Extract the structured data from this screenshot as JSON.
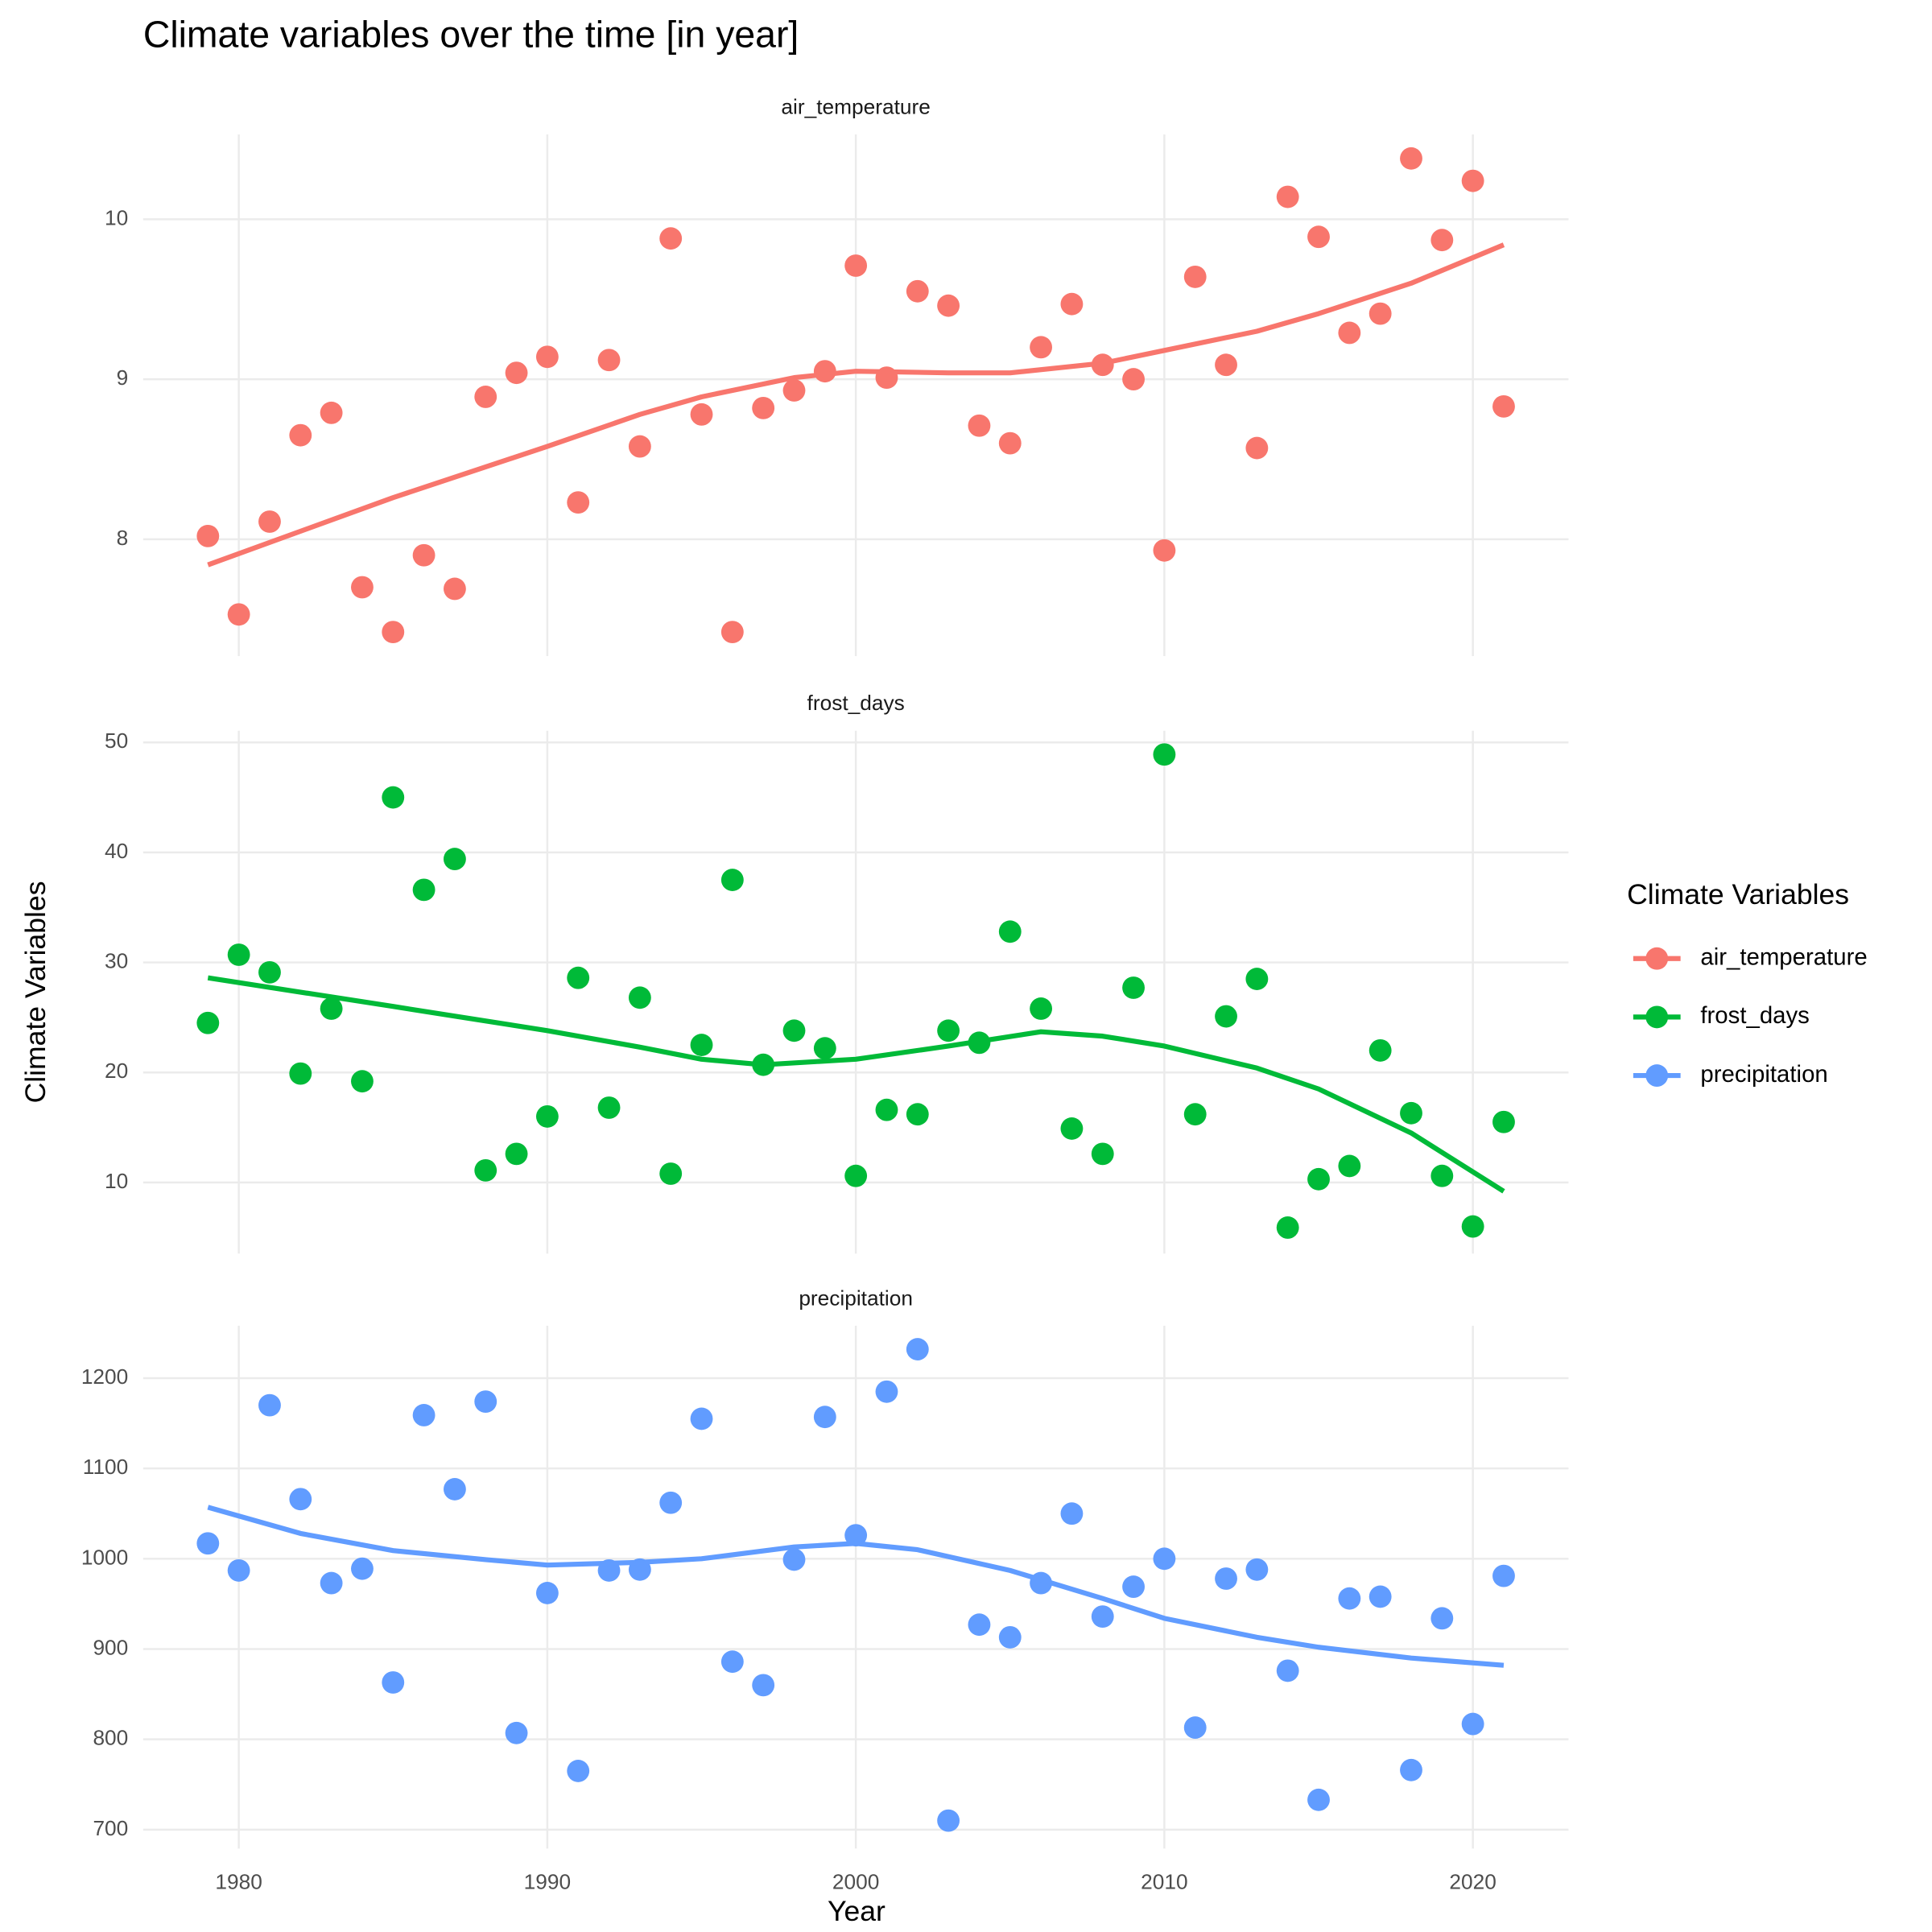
{
  "chart_data": {
    "type": "scatter",
    "title": "Climate variables over the time [in year]",
    "x_label": "Year",
    "y_label": "Climate Variables",
    "legend_title": "Climate Variables",
    "legend_position": "right",
    "grid": true,
    "x": [
      1979,
      1980,
      1981,
      1982,
      1983,
      1984,
      1985,
      1986,
      1987,
      1988,
      1989,
      1990,
      1991,
      1992,
      1993,
      1994,
      1995,
      1996,
      1997,
      1998,
      1999,
      2000,
      2001,
      2002,
      2003,
      2004,
      2005,
      2006,
      2007,
      2008,
      2009,
      2010,
      2011,
      2012,
      2013,
      2014,
      2015,
      2016,
      2017,
      2018,
      2019,
      2020,
      2021
    ],
    "xlim": [
      1976.9,
      2023.1
    ],
    "xticks": [
      1980,
      1990,
      2000,
      2010,
      2020
    ],
    "facets": [
      {
        "name": "air_temperature",
        "color": "#F8766D",
        "values": [
          8.02,
          7.53,
          8.11,
          8.65,
          8.79,
          7.7,
          7.42,
          7.9,
          7.69,
          8.89,
          9.04,
          9.14,
          8.23,
          9.12,
          8.58,
          9.88,
          8.78,
          7.42,
          8.82,
          8.93,
          9.05,
          9.71,
          9.01,
          9.55,
          9.46,
          8.71,
          8.6,
          9.2,
          9.47,
          9.09,
          9.0,
          7.93,
          9.64,
          9.09,
          8.57,
          10.14,
          9.89,
          9.29,
          9.41,
          10.38,
          9.87,
          10.24,
          8.83
        ],
        "ylim": [
          7.27,
          10.53
        ],
        "yticks": [
          8,
          9,
          10
        ],
        "smooth": {
          "x": [
            1979,
            1985,
            1990,
            1993,
            1995,
            1998,
            2000,
            2003,
            2005,
            2008,
            2010,
            2013,
            2015,
            2018,
            2021
          ],
          "values": [
            7.84,
            8.26,
            8.58,
            8.78,
            8.89,
            9.01,
            9.05,
            9.04,
            9.04,
            9.1,
            9.18,
            9.3,
            9.41,
            9.6,
            9.84
          ]
        }
      },
      {
        "name": "frost_days",
        "color": "#00BA38",
        "values": [
          24.5,
          30.7,
          29.1,
          19.9,
          25.8,
          19.2,
          45.0,
          36.6,
          39.4,
          11.1,
          12.6,
          16.0,
          28.6,
          16.8,
          26.8,
          10.8,
          22.5,
          37.5,
          20.7,
          23.8,
          22.2,
          10.6,
          16.6,
          16.2,
          23.8,
          22.7,
          32.8,
          25.8,
          14.9,
          12.6,
          27.7,
          48.9,
          16.2,
          25.1,
          28.5,
          5.9,
          10.3,
          11.5,
          22.0,
          16.3,
          10.6,
          6.0,
          15.5
        ],
        "ylim": [
          3.54,
          51.06
        ],
        "yticks": [
          10,
          20,
          30,
          40,
          50
        ],
        "smooth": {
          "x": [
            1979,
            1985,
            1990,
            1993,
            1995,
            1997,
            2000,
            2003,
            2006,
            2008,
            2010,
            2013,
            2015,
            2018,
            2021
          ],
          "values": [
            28.6,
            26.0,
            23.8,
            22.3,
            21.2,
            20.7,
            21.2,
            22.4,
            23.7,
            23.3,
            22.4,
            20.4,
            18.5,
            14.5,
            9.2
          ]
        }
      },
      {
        "name": "precipitation",
        "color": "#619CFF",
        "values": [
          1017,
          987,
          1170,
          1066,
          973,
          989,
          863,
          1159,
          1077,
          1174,
          807,
          962,
          765,
          987,
          988,
          1062,
          1155,
          886,
          860,
          999,
          1157,
          1026,
          1185,
          1232,
          710,
          927,
          913,
          973,
          1050,
          936,
          969,
          1000,
          813,
          978,
          988,
          876,
          733,
          956,
          958,
          766,
          934,
          817,
          981
        ],
        "ylim": [
          679,
          1258
        ],
        "yticks": [
          700,
          800,
          900,
          1000,
          1100,
          1200
        ],
        "smooth": {
          "x": [
            1979,
            1982,
            1985,
            1988,
            1990,
            1993,
            1995,
            1998,
            2000,
            2002,
            2005,
            2008,
            2010,
            2013,
            2015,
            2018,
            2021
          ],
          "values": [
            1057,
            1028,
            1009,
            999,
            993,
            996,
            1000,
            1013,
            1017,
            1010,
            987,
            956,
            934,
            913,
            902,
            890,
            882
          ]
        }
      }
    ]
  }
}
